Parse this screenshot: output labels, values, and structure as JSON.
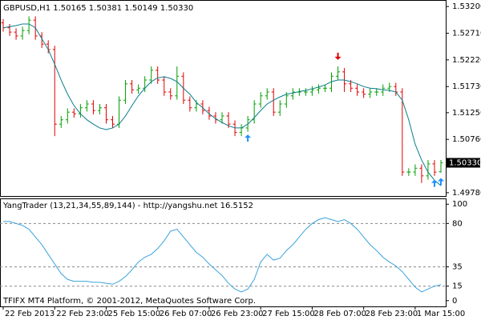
{
  "chart_data": [
    {
      "type": "ohlc",
      "title": "GBPUSD,H1 1.50165 1.50381 1.50149 1.50330",
      "up_color": "#00a000",
      "down_color": "#e00000",
      "grid": false,
      "categories": [
        "22 Feb 2013",
        null,
        null,
        null,
        null,
        null,
        null,
        null,
        "22 Feb 23:00",
        null,
        null,
        null,
        null,
        null,
        null,
        null,
        "25 Feb 15:00",
        null,
        null,
        null,
        null,
        null,
        null,
        null,
        "26 Feb 07:00",
        null,
        null,
        null,
        null,
        null,
        null,
        null,
        "26 Feb 23:00",
        null,
        null,
        null,
        null,
        null,
        null,
        null,
        "27 Feb 15:00",
        null,
        null,
        null,
        null,
        null,
        null,
        null,
        "28 Feb 07:00",
        null,
        null,
        null,
        null,
        null,
        null,
        null,
        "28 Feb 23:00",
        null,
        null,
        null,
        null,
        null,
        null,
        null,
        "1 Mar 15:00",
        null,
        null,
        null,
        null
      ],
      "open": [
        1.529,
        1.5281,
        1.5273,
        1.5266,
        1.5276,
        1.5295,
        1.5266,
        1.5251,
        1.5241,
        1.5104,
        1.5112,
        1.5126,
        1.5123,
        1.5134,
        1.5141,
        1.5129,
        1.5134,
        1.5112,
        1.5104,
        1.5148,
        1.5178,
        1.5167,
        1.517,
        1.5185,
        1.5203,
        1.5185,
        1.5163,
        1.5156,
        1.5192,
        1.5148,
        1.5134,
        1.5141,
        1.5129,
        1.5119,
        1.5112,
        1.5119,
        1.5104,
        1.5089,
        1.5097,
        1.5112,
        1.5141,
        1.5156,
        1.5163,
        1.5126,
        1.5141,
        1.5156,
        1.5163,
        1.5163,
        1.5163,
        1.5167,
        1.517,
        1.517,
        1.5192,
        1.52,
        1.5178,
        1.517,
        1.5163,
        1.5159,
        1.5163,
        1.5163,
        1.517,
        1.5173,
        1.5163,
        1.5016,
        1.5016,
        1.5023,
        1.5009,
        1.5031,
        1.50165
      ],
      "high": [
        1.5297,
        1.5288,
        1.528,
        1.5283,
        1.5302,
        1.5302,
        1.5273,
        1.5258,
        1.5248,
        1.5119,
        1.5133,
        1.5133,
        1.5141,
        1.5148,
        1.5148,
        1.5141,
        1.5141,
        1.5119,
        1.5155,
        1.5185,
        1.5185,
        1.5177,
        1.5192,
        1.521,
        1.521,
        1.5192,
        1.517,
        1.521,
        1.5199,
        1.5155,
        1.5148,
        1.5148,
        1.5136,
        1.5126,
        1.5126,
        1.5126,
        1.5111,
        1.5104,
        1.5119,
        1.5148,
        1.5163,
        1.517,
        1.517,
        1.5148,
        1.5163,
        1.517,
        1.517,
        1.517,
        1.5174,
        1.5177,
        1.5177,
        1.5199,
        1.521,
        1.5207,
        1.5185,
        1.5177,
        1.517,
        1.517,
        1.517,
        1.5177,
        1.518,
        1.518,
        1.517,
        1.5023,
        1.503,
        1.503,
        1.5038,
        1.5038,
        1.50381
      ],
      "low": [
        1.5274,
        1.5266,
        1.5259,
        1.5259,
        1.5269,
        1.5259,
        1.5244,
        1.5234,
        1.5082,
        1.5097,
        1.5105,
        1.5116,
        1.5116,
        1.5127,
        1.5122,
        1.5122,
        1.5105,
        1.5097,
        1.5097,
        1.5141,
        1.516,
        1.516,
        1.5163,
        1.5178,
        1.5178,
        1.5156,
        1.5149,
        1.5149,
        1.5141,
        1.5127,
        1.5127,
        1.5122,
        1.5112,
        1.5105,
        1.5105,
        1.5097,
        1.5082,
        1.5082,
        1.509,
        1.5105,
        1.5134,
        1.5149,
        1.5119,
        1.5119,
        1.5134,
        1.5149,
        1.5156,
        1.5156,
        1.5156,
        1.516,
        1.5163,
        1.5163,
        1.5185,
        1.5163,
        1.5163,
        1.5156,
        1.5152,
        1.5152,
        1.5156,
        1.5156,
        1.5163,
        1.5156,
        1.5009,
        1.5009,
        1.5009,
        1.4996,
        1.5002,
        1.5009,
        1.50149
      ],
      "close": [
        1.5281,
        1.5273,
        1.5266,
        1.5276,
        1.5295,
        1.5266,
        1.5251,
        1.5241,
        1.5104,
        1.5112,
        1.5126,
        1.5123,
        1.5134,
        1.5141,
        1.5129,
        1.5134,
        1.5112,
        1.5104,
        1.5148,
        1.5178,
        1.5167,
        1.517,
        1.5185,
        1.5203,
        1.5185,
        1.5163,
        1.5156,
        1.5192,
        1.5148,
        1.5134,
        1.5141,
        1.5129,
        1.5119,
        1.5112,
        1.5119,
        1.5104,
        1.5089,
        1.5097,
        1.5112,
        1.5141,
        1.5156,
        1.5163,
        1.5126,
        1.5141,
        1.5156,
        1.5163,
        1.5163,
        1.5163,
        1.5167,
        1.517,
        1.517,
        1.5192,
        1.52,
        1.5178,
        1.517,
        1.5163,
        1.5159,
        1.5163,
        1.5163,
        1.517,
        1.5173,
        1.5163,
        1.5016,
        1.5016,
        1.5023,
        1.5009,
        1.5031,
        1.5016,
        1.5033
      ],
      "series": [
        {
          "color": "#0a7d8c",
          "values": [
            1.5281,
            1.5283,
            1.5285,
            1.5288,
            1.5288,
            1.5281,
            1.5261,
            1.5241,
            1.5214,
            1.5185,
            1.5159,
            1.5138,
            1.5123,
            1.5112,
            1.5104,
            1.5097,
            1.5094,
            1.5097,
            1.5104,
            1.5119,
            1.5138,
            1.5156,
            1.517,
            1.5182,
            1.5189,
            1.5191,
            1.5188,
            1.5182,
            1.517,
            1.5159,
            1.5144,
            1.5134,
            1.5123,
            1.5114,
            1.5107,
            1.5101,
            1.5097,
            1.5097,
            1.5104,
            1.5116,
            1.5129,
            1.5141,
            1.5148,
            1.5154,
            1.5159,
            1.5161,
            1.5164,
            1.5166,
            1.5169,
            1.5172,
            1.5176,
            1.5182,
            1.5185,
            1.5185,
            1.5182,
            1.5178,
            1.5173,
            1.517,
            1.5169,
            1.5167,
            1.5166,
            1.5163,
            1.5148,
            1.5112,
            1.5067,
            1.5038,
            1.5016,
            1.5001,
            1.4991
          ]
        }
      ],
      "overlays": [
        {
          "color": "#e00000",
          "direction": "down",
          "values": [
            null,
            null,
            null,
            null,
            null,
            null,
            null,
            null,
            null,
            null,
            null,
            null,
            null,
            null,
            null,
            null,
            null,
            null,
            null,
            null,
            null,
            null,
            null,
            null,
            null,
            null,
            null,
            null,
            null,
            null,
            null,
            null,
            null,
            null,
            null,
            null,
            null,
            null,
            null,
            null,
            null,
            null,
            null,
            null,
            null,
            null,
            null,
            null,
            null,
            null,
            null,
            null,
            1.5222,
            null,
            null,
            null,
            null,
            null,
            null,
            null,
            null,
            null,
            null,
            null,
            null,
            null,
            null,
            null,
            null
          ]
        },
        {
          "color": "#1e90ff",
          "direction": "up",
          "values": [
            null,
            null,
            null,
            null,
            null,
            null,
            null,
            null,
            null,
            null,
            null,
            null,
            null,
            null,
            null,
            null,
            null,
            null,
            null,
            null,
            null,
            null,
            null,
            null,
            null,
            null,
            null,
            null,
            null,
            null,
            null,
            null,
            null,
            null,
            null,
            null,
            null,
            null,
            1.5085,
            null,
            null,
            null,
            null,
            null,
            null,
            null,
            null,
            null,
            null,
            null,
            null,
            null,
            null,
            null,
            null,
            null,
            null,
            null,
            null,
            null,
            null,
            null,
            null,
            null,
            null,
            null,
            null,
            1.5002,
            1.5005
          ]
        }
      ],
      "ylim": [
        1.4972,
        1.5332
      ],
      "yticks": [
        {
          "value": 1.532,
          "label": "1.53200"
        },
        {
          "value": 1.5271,
          "label": "1.52710"
        },
        {
          "value": 1.5222,
          "label": "1.52220"
        },
        {
          "value": 1.5173,
          "label": "1.51730"
        },
        {
          "value": 1.5125,
          "label": "1.51250"
        },
        {
          "value": 1.5076,
          "label": "1.50760"
        },
        {
          "value": 1.4978,
          "label": "1.49780"
        }
      ],
      "last_price": {
        "value": 1.5033,
        "label": "1.50330"
      }
    },
    {
      "type": "line",
      "title": "YangTrader (13,21,34,55,89,144) - http://yangshu.net 16.5152",
      "annotation": "TFIFX MT4 Platform, © 2001-2012, MetaQuotes Software Corp.",
      "series": [
        {
          "color": "#3aa3dc",
          "values": [
            82,
            82,
            80,
            78,
            74,
            66,
            58,
            48,
            38,
            28,
            22,
            20,
            20,
            20,
            19,
            19,
            18,
            17,
            20,
            25,
            32,
            40,
            45,
            48,
            54,
            62,
            72,
            74,
            66,
            58,
            50,
            45,
            38,
            32,
            26,
            18,
            12,
            9,
            12,
            22,
            40,
            48,
            42,
            44,
            52,
            58,
            66,
            74,
            80,
            84,
            86,
            84,
            82,
            84,
            80,
            74,
            66,
            58,
            52,
            45,
            40,
            36,
            30,
            22,
            14,
            9,
            12,
            15,
            16.5152
          ]
        }
      ],
      "ylim": [
        -6,
        106
      ],
      "yticks": [
        100,
        80,
        35,
        15,
        0
      ],
      "dashed_levels": [
        80,
        35,
        15
      ]
    }
  ]
}
